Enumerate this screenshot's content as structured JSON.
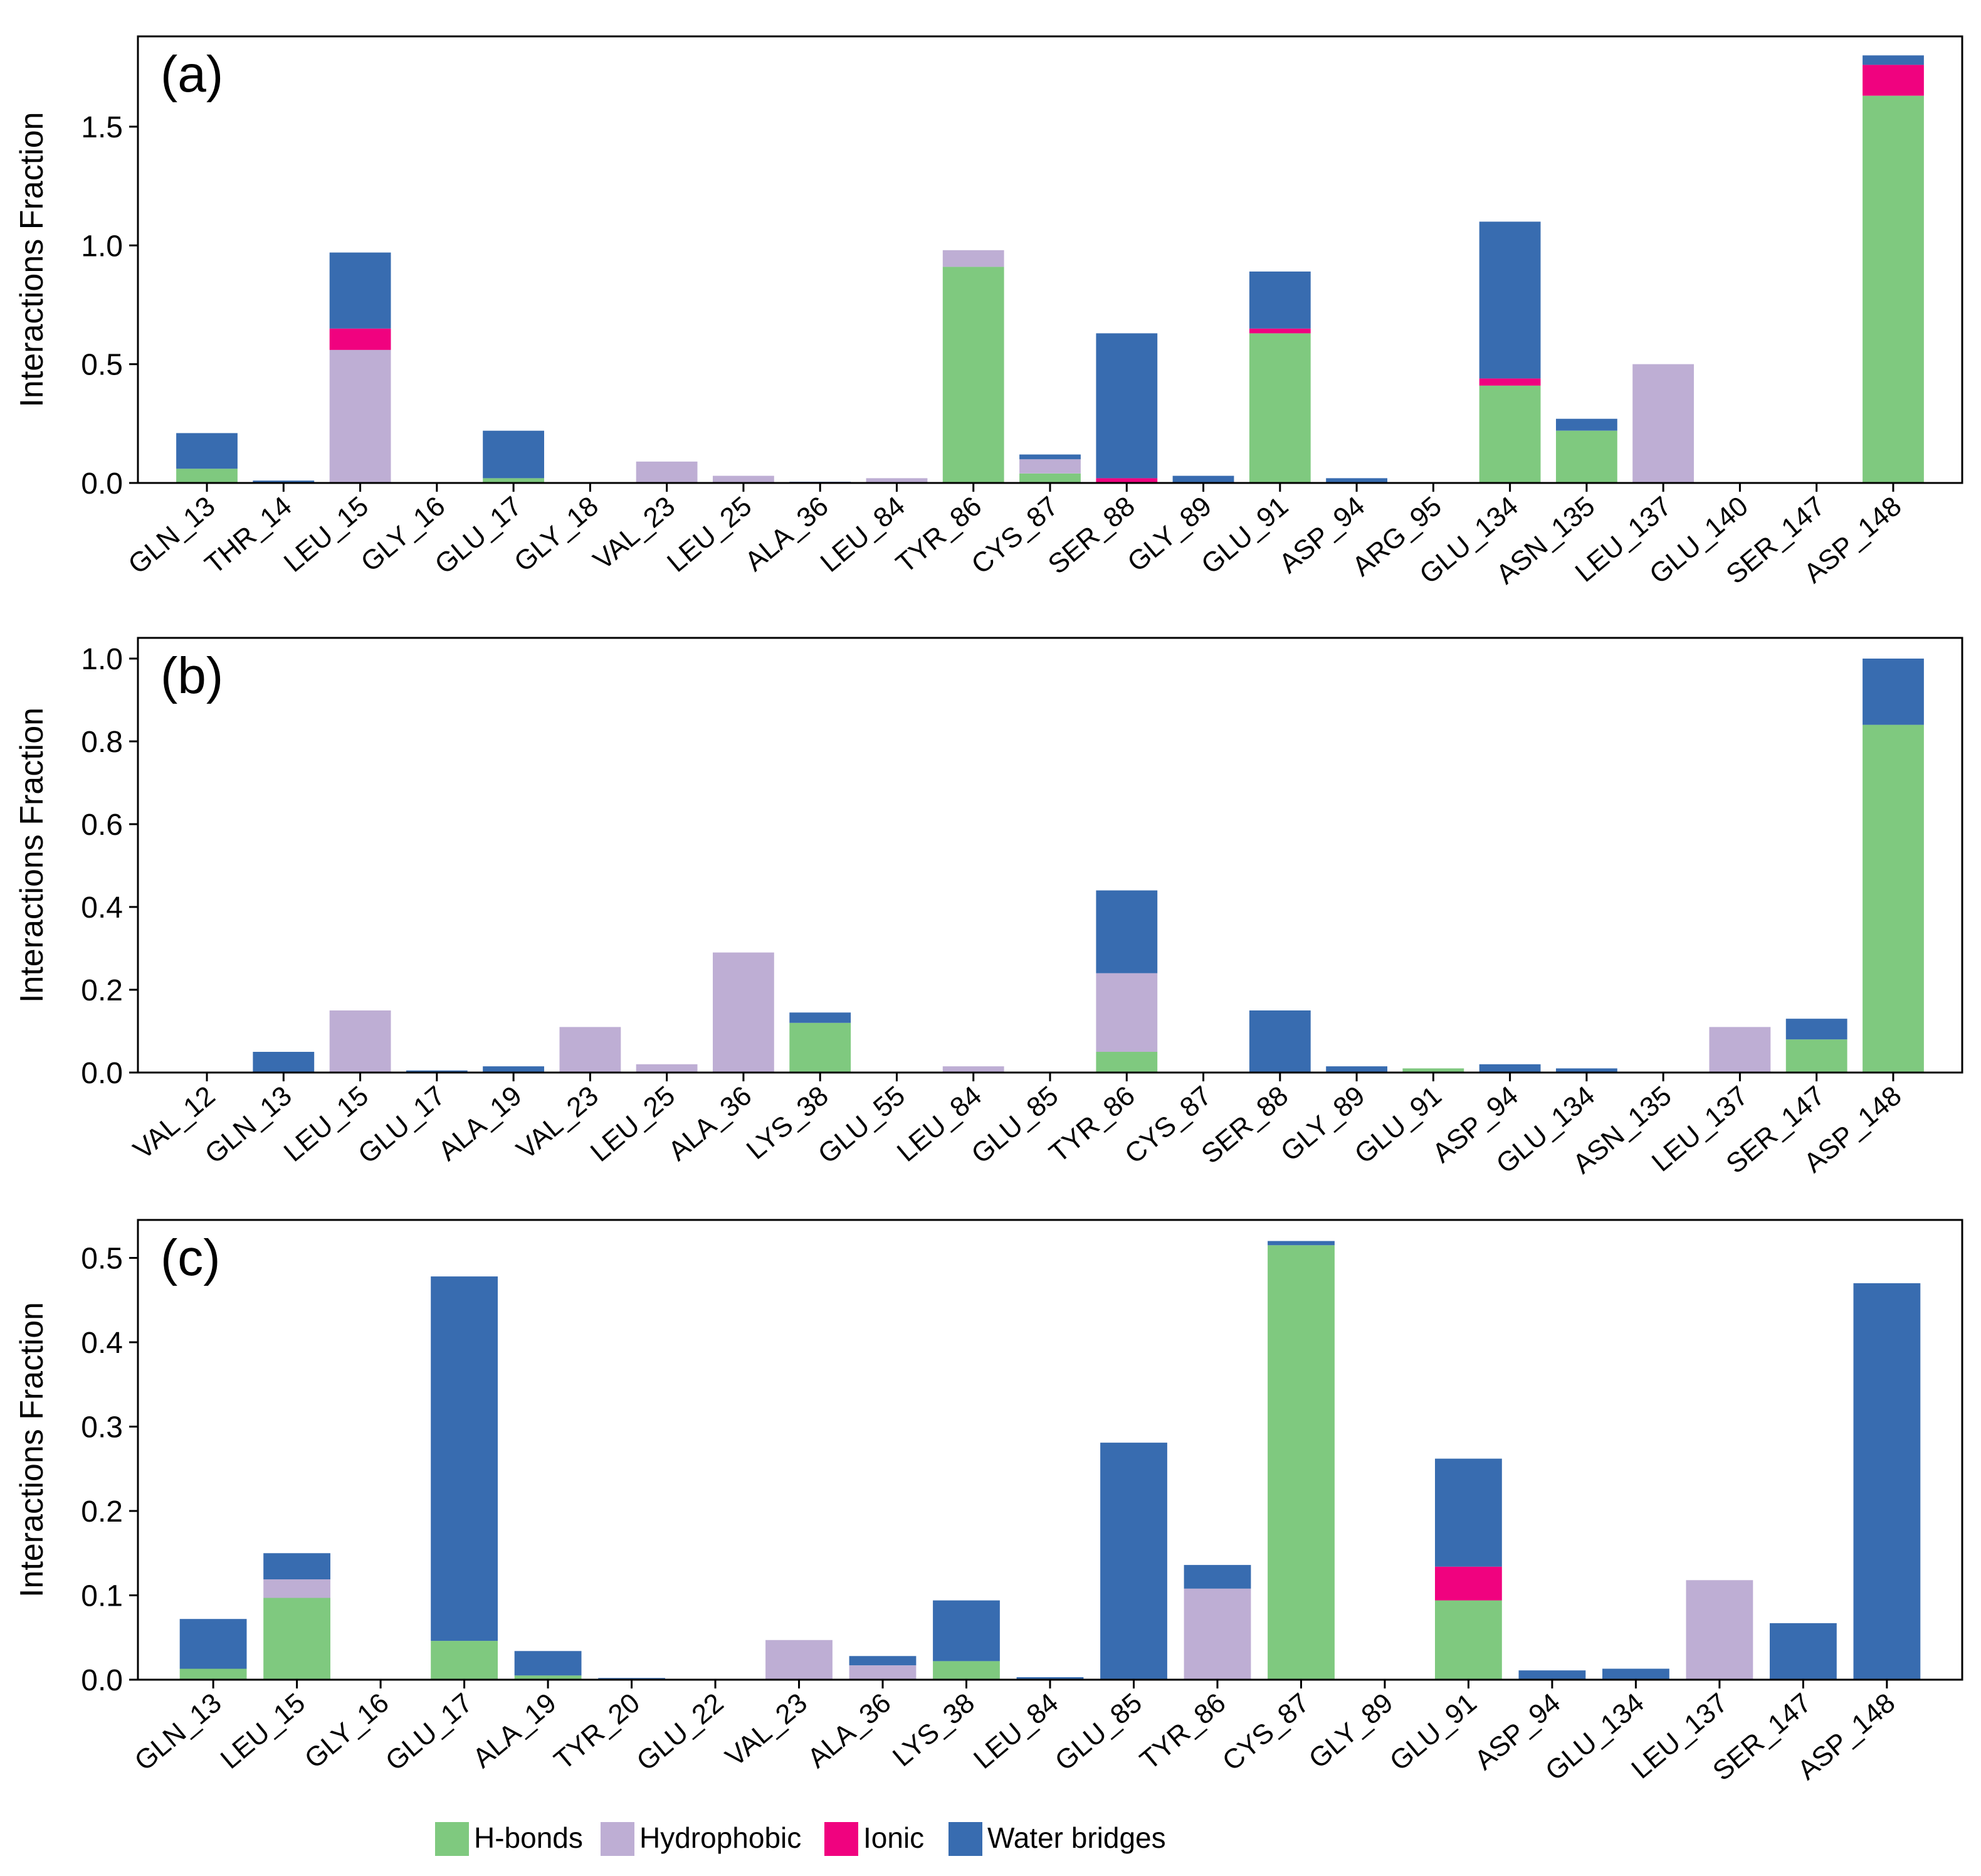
{
  "colors": {
    "hbonds": "#7fc97f",
    "hydrophobic": "#beaed4",
    "ionic": "#f0027f",
    "water": "#386cb0"
  },
  "legend": [
    {
      "key": "hbonds",
      "label": "H-bonds"
    },
    {
      "key": "hydrophobic",
      "label": "Hydrophobic"
    },
    {
      "key": "ionic",
      "label": "Ionic"
    },
    {
      "key": "water",
      "label": "Water bridges"
    }
  ],
  "chart_data": [
    {
      "type": "bar",
      "stacked": true,
      "panel_label": "(a)",
      "ylabel": "Interactions Fraction",
      "ylim": [
        0,
        1.88
      ],
      "yticks": [
        0.0,
        0.5,
        1.0,
        1.5
      ],
      "ytick_labels": [
        "0.0",
        "0.5",
        "1.0",
        "1.5"
      ],
      "categories": [
        "GLN_13",
        "THR_14",
        "LEU_15",
        "GLY_16",
        "GLU_17",
        "GLY_18",
        "VAL_23",
        "LEU_25",
        "ALA_36",
        "LEU_84",
        "TYR_86",
        "CYS_87",
        "SER_88",
        "GLY_89",
        "GLU_91",
        "ASP_94",
        "ARG_95",
        "GLU_134",
        "ASN_135",
        "LEU_137",
        "GLU_140",
        "SER_147",
        "ASP_148"
      ],
      "series": [
        {
          "name": "H-bonds",
          "key": "hbonds",
          "values": [
            0.06,
            0,
            0,
            0,
            0.02,
            0,
            0,
            0,
            0,
            0,
            0.91,
            0.04,
            0,
            0,
            0.63,
            0,
            0,
            0.41,
            0.22,
            0,
            0,
            0,
            1.63
          ]
        },
        {
          "name": "Hydrophobic",
          "key": "hydrophobic",
          "values": [
            0,
            0,
            0.56,
            0,
            0,
            0,
            0.09,
            0.03,
            0,
            0.02,
            0.07,
            0.06,
            0,
            0,
            0,
            0,
            0,
            0,
            0,
            0.5,
            0,
            0,
            0
          ]
        },
        {
          "name": "Ionic",
          "key": "ionic",
          "values": [
            0,
            0,
            0.09,
            0,
            0,
            0,
            0,
            0,
            0,
            0,
            0,
            0,
            0.02,
            0,
            0.02,
            0,
            0,
            0.03,
            0,
            0,
            0,
            0,
            0.13
          ]
        },
        {
          "name": "Water bridges",
          "key": "water",
          "values": [
            0.15,
            0.01,
            0.32,
            0,
            0.2,
            0,
            0,
            0,
            0.005,
            0,
            0,
            0.02,
            0.61,
            0.03,
            0.24,
            0.02,
            0,
            0.66,
            0.05,
            0,
            0,
            0,
            0.04
          ]
        }
      ]
    },
    {
      "type": "bar",
      "stacked": true,
      "panel_label": "(b)",
      "ylabel": "Interactions Fraction",
      "ylim": [
        0,
        1.05
      ],
      "yticks": [
        0.0,
        0.2,
        0.4,
        0.6,
        0.8,
        1.0
      ],
      "ytick_labels": [
        "0.0",
        "0.2",
        "0.4",
        "0.6",
        "0.8",
        "1.0"
      ],
      "categories": [
        "VAL_12",
        "GLN_13",
        "LEU_15",
        "GLU_17",
        "ALA_19",
        "VAL_23",
        "LEU_25",
        "ALA_36",
        "LYS_38",
        "GLU_55",
        "LEU_84",
        "GLU_85",
        "TYR_86",
        "CYS_87",
        "SER_88",
        "GLY_89",
        "GLU_91",
        "ASP_94",
        "GLU_134",
        "ASN_135",
        "LEU_137",
        "SER_147",
        "ASP_148"
      ],
      "series": [
        {
          "name": "H-bonds",
          "key": "hbonds",
          "values": [
            0,
            0,
            0,
            0,
            0,
            0,
            0,
            0,
            0.12,
            0,
            0,
            0,
            0.05,
            0,
            0,
            0,
            0.01,
            0,
            0,
            0,
            0,
            0.08,
            0.84
          ]
        },
        {
          "name": "Hydrophobic",
          "key": "hydrophobic",
          "values": [
            0,
            0,
            0.15,
            0,
            0,
            0.11,
            0.02,
            0.29,
            0,
            0,
            0.015,
            0,
            0.19,
            0,
            0,
            0,
            0,
            0,
            0,
            0,
            0.11,
            0,
            0
          ]
        },
        {
          "name": "Ionic",
          "key": "ionic",
          "values": [
            0,
            0,
            0,
            0,
            0,
            0,
            0,
            0,
            0,
            0,
            0,
            0,
            0,
            0,
            0,
            0,
            0,
            0,
            0,
            0,
            0,
            0,
            0
          ]
        },
        {
          "name": "Water bridges",
          "key": "water",
          "values": [
            0,
            0.05,
            0,
            0.005,
            0.015,
            0,
            0,
            0,
            0.025,
            0,
            0,
            0,
            0.2,
            0,
            0.15,
            0.015,
            0,
            0.02,
            0.01,
            0,
            0,
            0.05,
            0.16
          ]
        }
      ]
    },
    {
      "type": "bar",
      "stacked": true,
      "panel_label": "(c)",
      "ylabel": "Interactions Fraction",
      "ylim": [
        0,
        0.545
      ],
      "yticks": [
        0.0,
        0.1,
        0.2,
        0.3,
        0.4,
        0.5
      ],
      "ytick_labels": [
        "0.0",
        "0.1",
        "0.2",
        "0.3",
        "0.4",
        "0.5"
      ],
      "categories": [
        "GLN_13",
        "LEU_15",
        "GLY_16",
        "GLU_17",
        "ALA_19",
        "TYR_20",
        "GLU_22",
        "VAL_23",
        "ALA_36",
        "LYS_38",
        "LEU_84",
        "GLU_85",
        "TYR_86",
        "CYS_87",
        "GLY_89",
        "GLU_91",
        "ASP_94",
        "GLU_134",
        "LEU_137",
        "SER_147",
        "ASP_148"
      ],
      "series": [
        {
          "name": "H-bonds",
          "key": "hbonds",
          "values": [
            0.013,
            0.097,
            0,
            0.046,
            0.005,
            0,
            0,
            0,
            0,
            0.022,
            0,
            0,
            0,
            0.515,
            0,
            0.094,
            0,
            0,
            0,
            0,
            0
          ]
        },
        {
          "name": "Hydrophobic",
          "key": "hydrophobic",
          "values": [
            0,
            0.022,
            0,
            0,
            0,
            0,
            0,
            0.047,
            0.017,
            0,
            0,
            0,
            0.108,
            0,
            0,
            0,
            0,
            0,
            0.118,
            0,
            0
          ]
        },
        {
          "name": "Ionic",
          "key": "ionic",
          "values": [
            0,
            0,
            0,
            0,
            0,
            0,
            0,
            0,
            0,
            0,
            0,
            0,
            0,
            0,
            0,
            0.04,
            0,
            0,
            0,
            0,
            0
          ]
        },
        {
          "name": "Water bridges",
          "key": "water",
          "values": [
            0.059,
            0.031,
            0,
            0.432,
            0.029,
            0.002,
            0.001,
            0,
            0.011,
            0.072,
            0.003,
            0.281,
            0.028,
            0.005,
            0,
            0.128,
            0.011,
            0.013,
            0,
            0.067,
            0.47
          ]
        }
      ]
    }
  ]
}
